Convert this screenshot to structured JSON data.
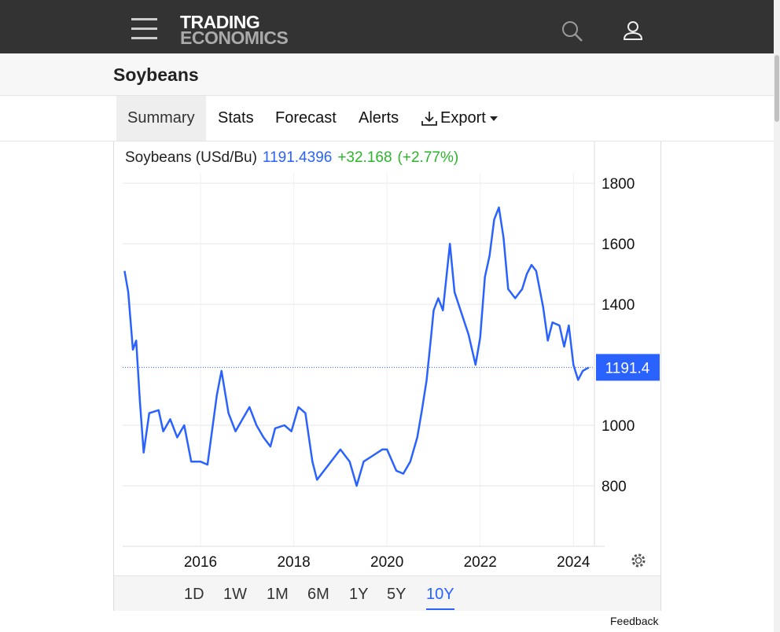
{
  "header": {
    "brand_line1": "TRADING",
    "brand_line2": "ECONOMICS"
  },
  "page_title": "Soybeans",
  "tabs": [
    "Summary",
    "Stats",
    "Forecast",
    "Alerts",
    "Export"
  ],
  "active_tab": 0,
  "ranges": [
    "1D",
    "1W",
    "1M",
    "6M",
    "1Y",
    "5Y",
    "10Y"
  ],
  "active_range": 6,
  "footer": "Feedback",
  "chart_data": {
    "type": "line",
    "title": "Soybeans (USd/Bu)",
    "last_price": "1191.4396",
    "change": "+32.168",
    "change_pct": "(+2.77%)",
    "color": "#2962ff",
    "current_value": 1191.4396,
    "current_label": "1191.4",
    "x": [
      2014.37,
      2014.45,
      2014.55,
      2014.62,
      2014.7,
      2014.78,
      2014.9,
      2015.1,
      2015.2,
      2015.35,
      2015.5,
      2015.65,
      2015.8,
      2016.0,
      2016.15,
      2016.35,
      2016.45,
      2016.6,
      2016.75,
      2016.9,
      2017.05,
      2017.2,
      2017.35,
      2017.5,
      2017.6,
      2017.8,
      2017.95,
      2018.1,
      2018.25,
      2018.4,
      2018.5,
      2018.7,
      2018.9,
      2019.0,
      2019.2,
      2019.35,
      2019.5,
      2019.7,
      2019.9,
      2020.0,
      2020.2,
      2020.35,
      2020.5,
      2020.65,
      2020.75,
      2020.85,
      2020.95,
      2021.0,
      2021.1,
      2021.2,
      2021.35,
      2021.45,
      2021.6,
      2021.75,
      2021.9,
      2022.0,
      2022.1,
      2022.2,
      2022.3,
      2022.4,
      2022.5,
      2022.6,
      2022.75,
      2022.9,
      2023.0,
      2023.1,
      2023.2,
      2023.35,
      2023.45,
      2023.55,
      2023.7,
      2023.8,
      2023.9,
      2024.0,
      2024.1,
      2024.2,
      2024.33
    ],
    "values": [
      1510,
      1440,
      1250,
      1280,
      1080,
      910,
      1040,
      1050,
      980,
      1020,
      960,
      1000,
      880,
      880,
      870,
      1100,
      1180,
      1040,
      980,
      1020,
      1060,
      1000,
      960,
      930,
      990,
      1000,
      980,
      1060,
      1040,
      880,
      820,
      860,
      900,
      920,
      880,
      800,
      880,
      900,
      920,
      920,
      850,
      840,
      880,
      960,
      1050,
      1150,
      1300,
      1380,
      1420,
      1380,
      1600,
      1440,
      1370,
      1300,
      1200,
      1290,
      1490,
      1560,
      1680,
      1720,
      1620,
      1450,
      1420,
      1450,
      1500,
      1530,
      1510,
      1390,
      1280,
      1340,
      1330,
      1260,
      1330,
      1200,
      1150,
      1180,
      1191.4
    ],
    "xlim": [
      2014.33,
      2024.45
    ],
    "xticks": [
      2016,
      2018,
      2020,
      2022,
      2024
    ],
    "ylim": [
      600,
      1925
    ],
    "yticks": [
      800,
      1000,
      1400,
      1600,
      1800
    ],
    "grid": true
  }
}
